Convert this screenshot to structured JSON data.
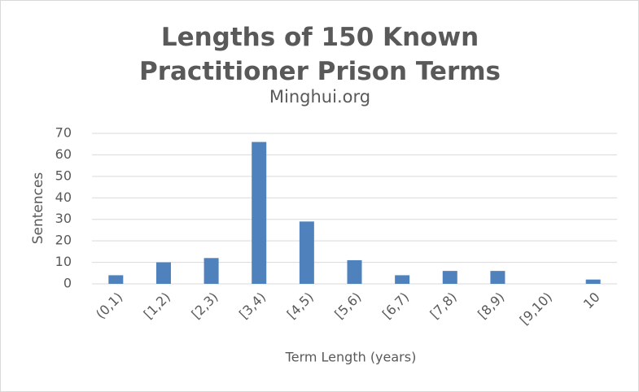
{
  "chart_data": {
    "type": "bar",
    "title": "Lengths of 150 Known Practitioner Prison Terms",
    "subtitle": "Minghui.org",
    "x_label": "Term Length (years)",
    "y_label": "Sentences",
    "categories": [
      "(0,1)",
      "[1,2)",
      "[2,3)",
      "[3,4)",
      "[4,5)",
      "[5,6)",
      "[6,7)",
      "[7,8)",
      "[8,9)",
      "[9,10)",
      "10"
    ],
    "values": [
      4,
      10,
      12,
      66,
      29,
      11,
      4,
      6,
      6,
      0,
      2
    ],
    "color": "#4f81bd",
    "ylim": [
      0,
      70
    ],
    "yticks": [
      0,
      10,
      20,
      30,
      40,
      50,
      60,
      70
    ],
    "grid": true
  }
}
